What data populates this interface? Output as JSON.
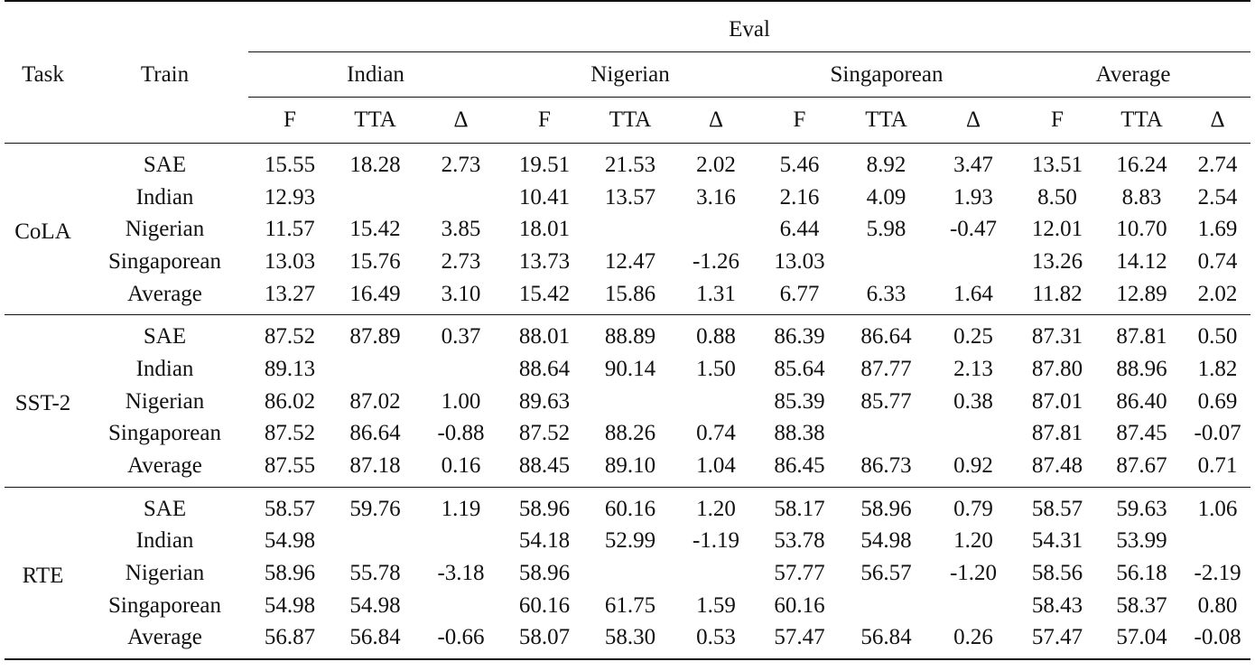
{
  "header": {
    "task": "Task",
    "train": "Train",
    "eval": "Eval",
    "groups": [
      "Indian",
      "Nigerian",
      "Singaporean",
      "Average"
    ],
    "subcols": [
      "F",
      "TTA",
      "Δ"
    ]
  },
  "tasks": [
    {
      "name": "CoLA",
      "rows": [
        {
          "train": "SAE",
          "cells": [
            "15.55",
            "18.28",
            "2.73",
            "19.51",
            "21.53",
            "2.02",
            "5.46",
            "8.92",
            "3.47",
            "13.51",
            "16.24",
            "2.74"
          ]
        },
        {
          "train": "Indian",
          "cells": [
            "12.93",
            "",
            "",
            "10.41",
            "13.57",
            "3.16",
            "2.16",
            "4.09",
            "1.93",
            "8.50",
            "8.83",
            "2.54"
          ]
        },
        {
          "train": "Nigerian",
          "cells": [
            "11.57",
            "15.42",
            "3.85",
            "18.01",
            "",
            "",
            "6.44",
            "5.98",
            "-0.47",
            "12.01",
            "10.70",
            "1.69"
          ]
        },
        {
          "train": "Singaporean",
          "cells": [
            "13.03",
            "15.76",
            "2.73",
            "13.73",
            "12.47",
            "-1.26",
            "13.03",
            "",
            "",
            "13.26",
            "14.12",
            "0.74"
          ]
        },
        {
          "train": "Average",
          "cells": [
            "13.27",
            "16.49",
            "3.10",
            "15.42",
            "15.86",
            "1.31",
            "6.77",
            "6.33",
            "1.64",
            "11.82",
            "12.89",
            "2.02"
          ]
        }
      ]
    },
    {
      "name": "SST-2",
      "rows": [
        {
          "train": "SAE",
          "cells": [
            "87.52",
            "87.89",
            "0.37",
            "88.01",
            "88.89",
            "0.88",
            "86.39",
            "86.64",
            "0.25",
            "87.31",
            "87.81",
            "0.50"
          ]
        },
        {
          "train": "Indian",
          "cells": [
            "89.13",
            "",
            "",
            "88.64",
            "90.14",
            "1.50",
            "85.64",
            "87.77",
            "2.13",
            "87.80",
            "88.96",
            "1.82"
          ]
        },
        {
          "train": "Nigerian",
          "cells": [
            "86.02",
            "87.02",
            "1.00",
            "89.63",
            "",
            "",
            "85.39",
            "85.77",
            "0.38",
            "87.01",
            "86.40",
            "0.69"
          ]
        },
        {
          "train": "Singaporean",
          "cells": [
            "87.52",
            "86.64",
            "-0.88",
            "87.52",
            "88.26",
            "0.74",
            "88.38",
            "",
            "",
            "87.81",
            "87.45",
            "-0.07"
          ]
        },
        {
          "train": "Average",
          "cells": [
            "87.55",
            "87.18",
            "0.16",
            "88.45",
            "89.10",
            "1.04",
            "86.45",
            "86.73",
            "0.92",
            "87.48",
            "87.67",
            "0.71"
          ]
        }
      ]
    },
    {
      "name": "RTE",
      "rows": [
        {
          "train": "SAE",
          "cells": [
            "58.57",
            "59.76",
            "1.19",
            "58.96",
            "60.16",
            "1.20",
            "58.17",
            "58.96",
            "0.79",
            "58.57",
            "59.63",
            "1.06"
          ]
        },
        {
          "train": "Indian",
          "cells": [
            "54.98",
            "",
            "",
            "54.18",
            "52.99",
            "-1.19",
            "53.78",
            "54.98",
            "1.20",
            "54.31",
            "53.99",
            ""
          ]
        },
        {
          "train": "Nigerian",
          "cells": [
            "58.96",
            "55.78",
            "-3.18",
            "58.96",
            "",
            "",
            "57.77",
            "56.57",
            "-1.20",
            "58.56",
            "56.18",
            "-2.19"
          ]
        },
        {
          "train": "Singaporean",
          "cells": [
            "54.98",
            "54.98",
            "",
            "60.16",
            "61.75",
            "1.59",
            "60.16",
            "",
            "",
            "58.43",
            "58.37",
            "0.80"
          ]
        },
        {
          "train": "Average",
          "cells": [
            "56.87",
            "56.84",
            "-0.66",
            "58.07",
            "58.30",
            "0.53",
            "57.47",
            "56.84",
            "0.26",
            "57.47",
            "57.04",
            "-0.08"
          ]
        }
      ]
    }
  ]
}
